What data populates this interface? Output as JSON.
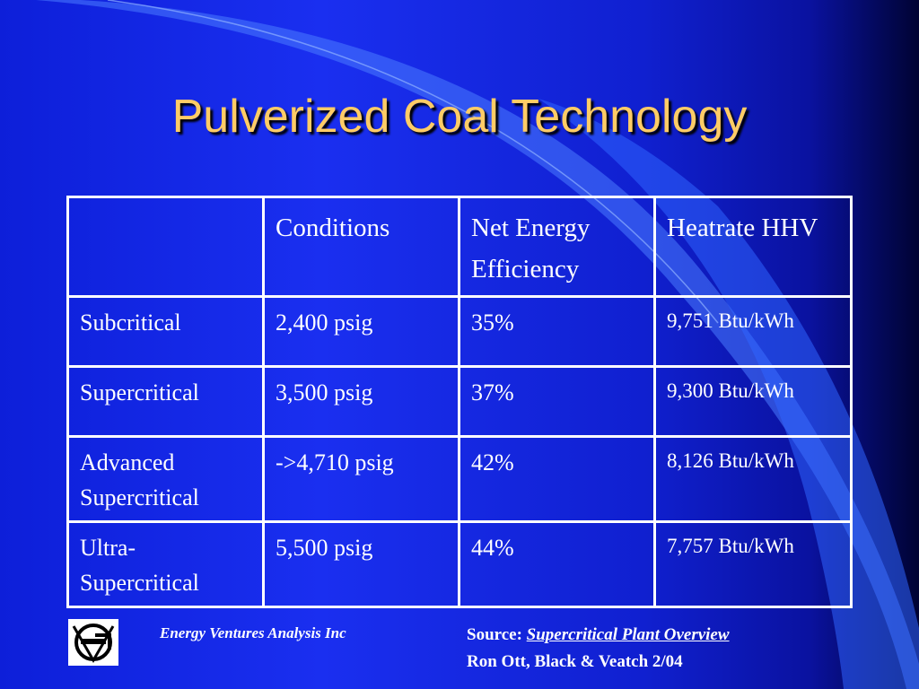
{
  "slide": {
    "title": "Pulverized Coal Technology"
  },
  "table": {
    "headers": [
      "",
      "Conditions",
      "Net Energy Efficiency",
      "Heatrate HHV"
    ],
    "rows": [
      {
        "name": "Subcritical",
        "conditions": "2,400 psig",
        "efficiency": "35%",
        "heatrate": "9,751 Btu/kWh"
      },
      {
        "name": "Supercritical",
        "conditions": "3,500 psig",
        "efficiency": "37%",
        "heatrate": "9,300 Btu/kWh"
      },
      {
        "name": "Advanced Supercritical",
        "conditions": "->4,710 psig",
        "efficiency": "42%",
        "heatrate": "8,126 Btu/kWh"
      },
      {
        "name": "Ultra-Supercritical",
        "conditions": "5,500 psig",
        "efficiency": "44%",
        "heatrate": "7,757 Btu/kWh"
      }
    ]
  },
  "footer": {
    "company": "Energy Ventures Analysis Inc",
    "source_label": "Source:",
    "source_title": "Supercritical Plant Overview",
    "source_author": "Ron Ott, Black & Veatch 2/04"
  },
  "colors": {
    "title": "#ffcc66",
    "background": "#1a2ff0",
    "text": "#ffffff"
  }
}
